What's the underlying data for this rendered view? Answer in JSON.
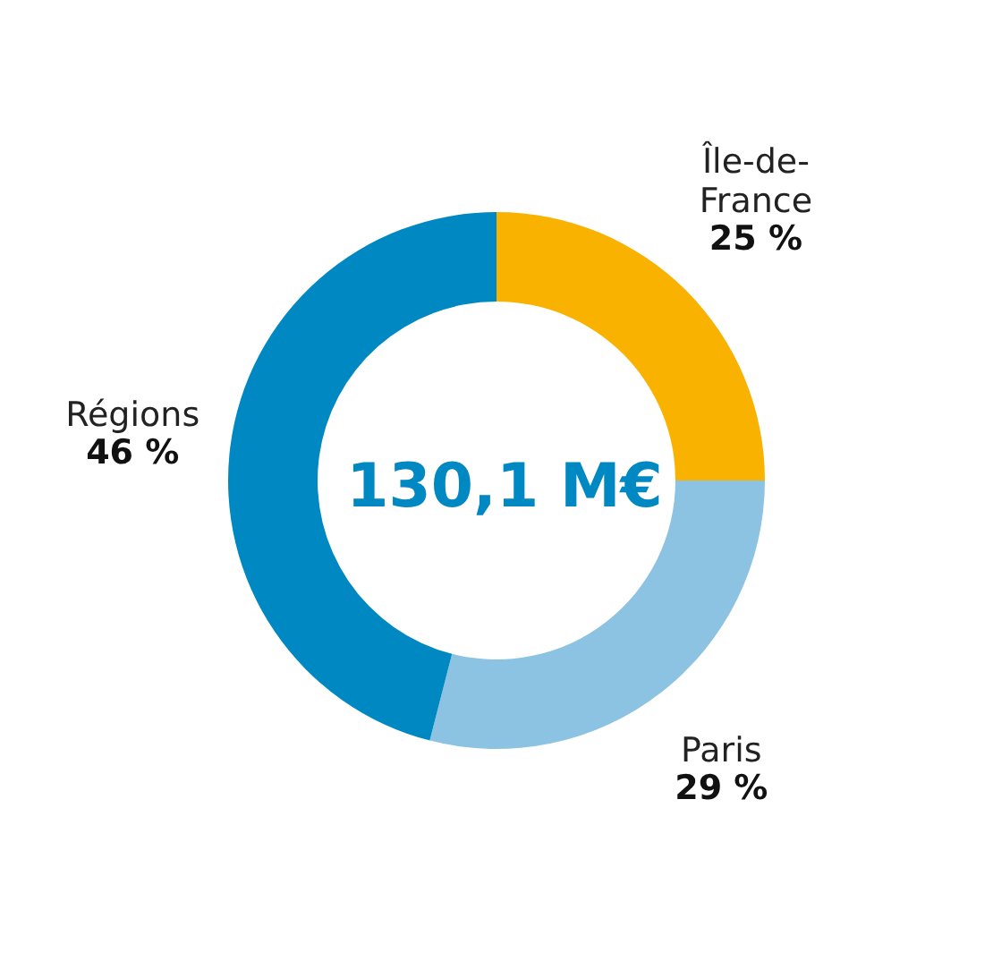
{
  "chart_data": {
    "type": "donut",
    "categories": [
      "Île-de-France",
      "Paris",
      "Régions"
    ],
    "values": [
      25,
      29,
      46
    ],
    "colors": [
      "#f9b200",
      "#8cc3e3",
      "#0088c2"
    ],
    "value_labels": [
      "25 %",
      "29 %",
      "46 %"
    ],
    "annotations": [
      "130,1 M€"
    ],
    "legend": false
  }
}
